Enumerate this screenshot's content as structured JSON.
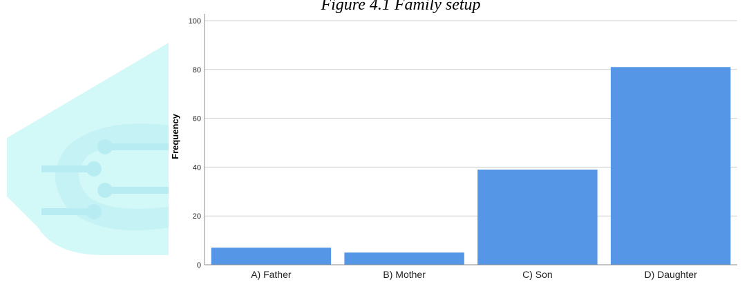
{
  "colors": {
    "bar": "#5597e6",
    "gridline": "#cfcfcf",
    "axis": "#888888",
    "watermark_light": "#d3f8f8",
    "watermark_mid": "#c4f2f5",
    "watermark_deep": "#b7ecf3"
  },
  "chart_data": {
    "type": "bar",
    "title": "Figure 4.1 Family setup",
    "xlabel": "",
    "ylabel": "Frequency",
    "categories": [
      "A) Father",
      "B) Mother",
      "C) Son",
      "D) Daughter"
    ],
    "values": [
      7,
      5,
      39,
      81
    ],
    "ylim": [
      0,
      100
    ],
    "yticks": [
      0,
      20,
      40,
      60,
      80,
      100
    ],
    "grid": true,
    "legend": "none"
  }
}
